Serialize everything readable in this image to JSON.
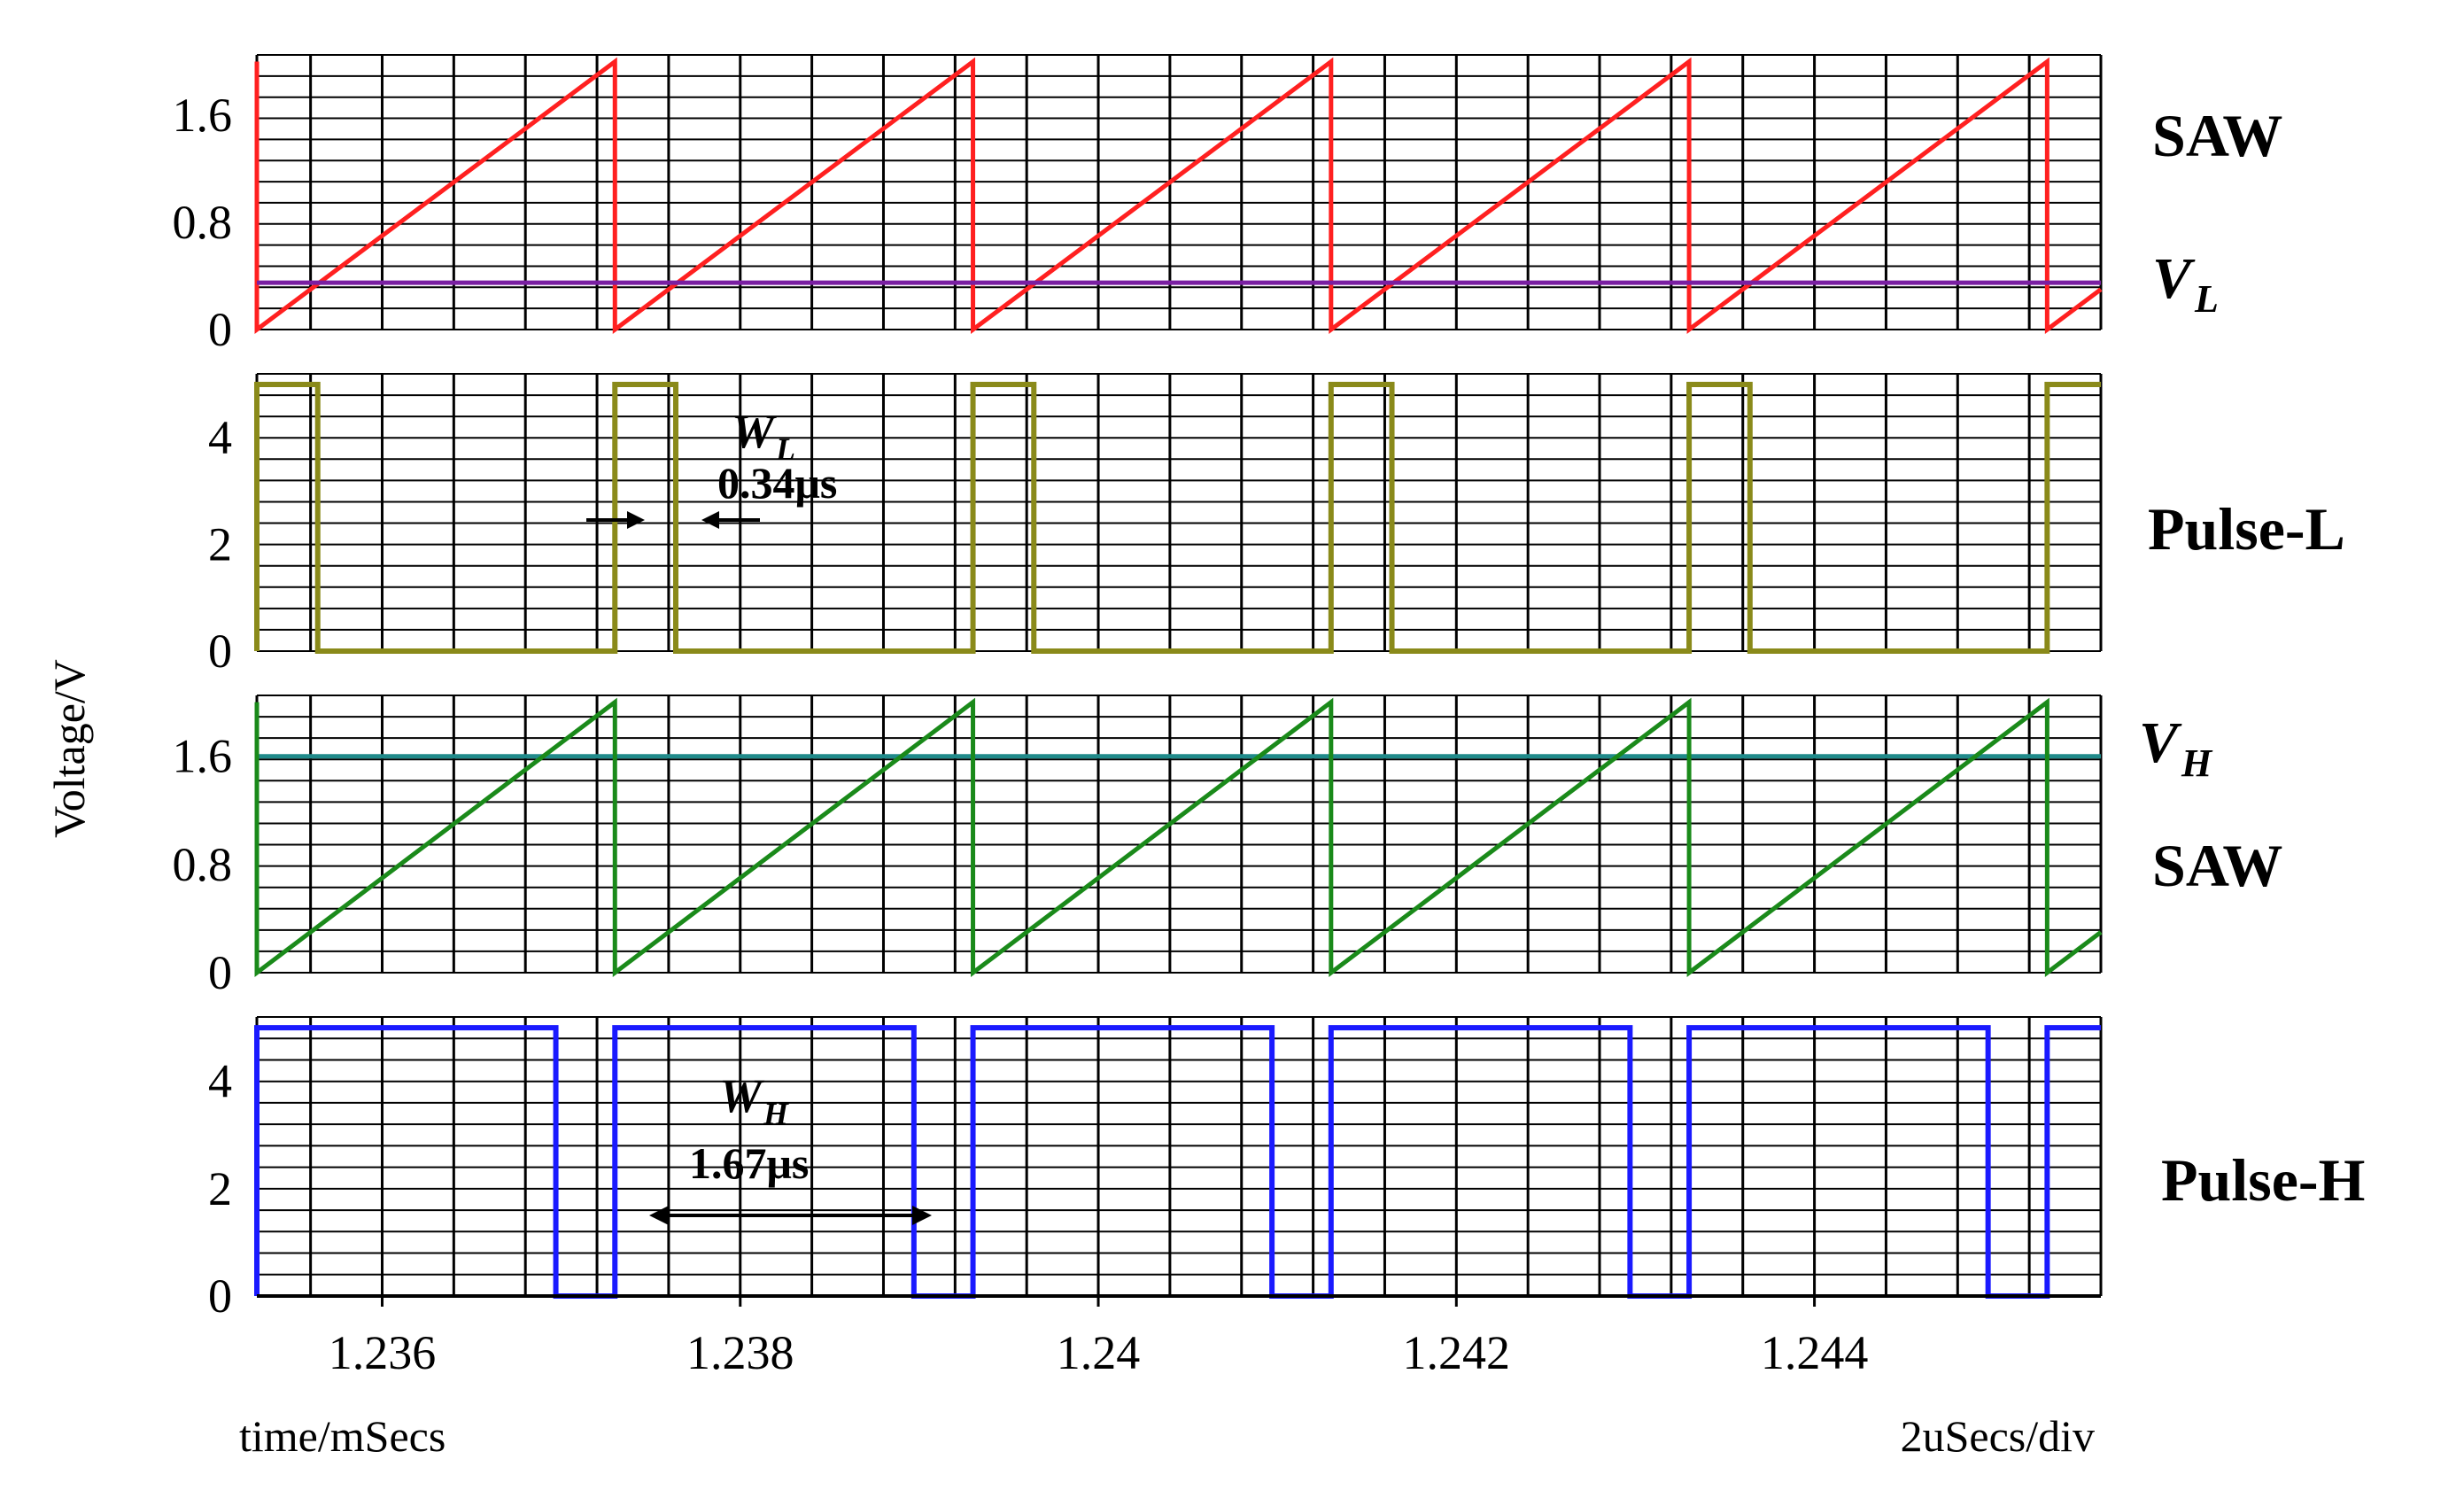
{
  "chart_data": {
    "type": "line",
    "xlabel": "time/mSecs",
    "ylabel": "Voltage/V",
    "timebase": "2uSecs/div",
    "xlim": [
      1.2353,
      1.2456
    ],
    "x_ticks": [
      1.236,
      1.238,
      1.24,
      1.242,
      1.244
    ],
    "x_tick_labels": [
      "1.236",
      "1.238",
      "1.24",
      "1.242",
      "1.244"
    ],
    "period_ms": 0.002,
    "panels": [
      {
        "id": "saw-low",
        "ylim": [
          0,
          2.05
        ],
        "y_ticks": [
          0,
          0.8,
          1.6
        ],
        "y_tick_labels": [
          "0",
          "0.8",
          "1.6"
        ],
        "series": [
          {
            "name": "SAW",
            "kind": "sawtooth",
            "color": "#ff2020",
            "min": 0,
            "max": 2.0,
            "reset_times": [
              1.2353,
              1.2373,
              1.2393,
              1.2413,
              1.2433,
              1.2453
            ]
          },
          {
            "name": "V",
            "sub": "L",
            "kind": "level",
            "color": "#7a1fa2",
            "value": 0.35
          }
        ]
      },
      {
        "id": "pulse-low",
        "ylim": [
          0,
          5.2
        ],
        "y_ticks": [
          0,
          2,
          4
        ],
        "y_tick_labels": [
          "0",
          "2",
          "4"
        ],
        "series": [
          {
            "name": "Pulse-L",
            "kind": "pulse",
            "color": "#8a8a1a",
            "high": 5,
            "width_ms": 0.00034,
            "start_times": [
              1.2353,
              1.2373,
              1.2393,
              1.2413,
              1.2433,
              1.2453
            ]
          }
        ],
        "annotation": {
          "symbol": "W",
          "sub": "L",
          "value": "0.34μs"
        }
      },
      {
        "id": "saw-high",
        "ylim": [
          0,
          2.05
        ],
        "y_ticks": [
          0,
          0.8,
          1.6
        ],
        "y_tick_labels": [
          "0",
          "0.8",
          "1.6"
        ],
        "series": [
          {
            "name": "V",
            "sub": "H",
            "kind": "level",
            "color": "#1f8a8a",
            "value": 1.6
          },
          {
            "name": "SAW",
            "kind": "sawtooth",
            "color": "#1a8a1a",
            "min": 0,
            "max": 2.0,
            "reset_times": [
              1.2353,
              1.2373,
              1.2393,
              1.2413,
              1.2433,
              1.2453
            ]
          }
        ]
      },
      {
        "id": "pulse-high",
        "ylim": [
          0,
          5.2
        ],
        "y_ticks": [
          0,
          2,
          4
        ],
        "y_tick_labels": [
          "0",
          "2",
          "4"
        ],
        "series": [
          {
            "name": "Pulse-H",
            "kind": "pulse",
            "color": "#1a1aff",
            "high": 5,
            "width_ms": 0.00167,
            "start_times": [
              1.2353,
              1.2373,
              1.2393,
              1.2413,
              1.2433,
              1.2453
            ]
          }
        ],
        "annotation": {
          "symbol": "W",
          "sub": "H",
          "value": "1.67μs"
        }
      }
    ]
  }
}
